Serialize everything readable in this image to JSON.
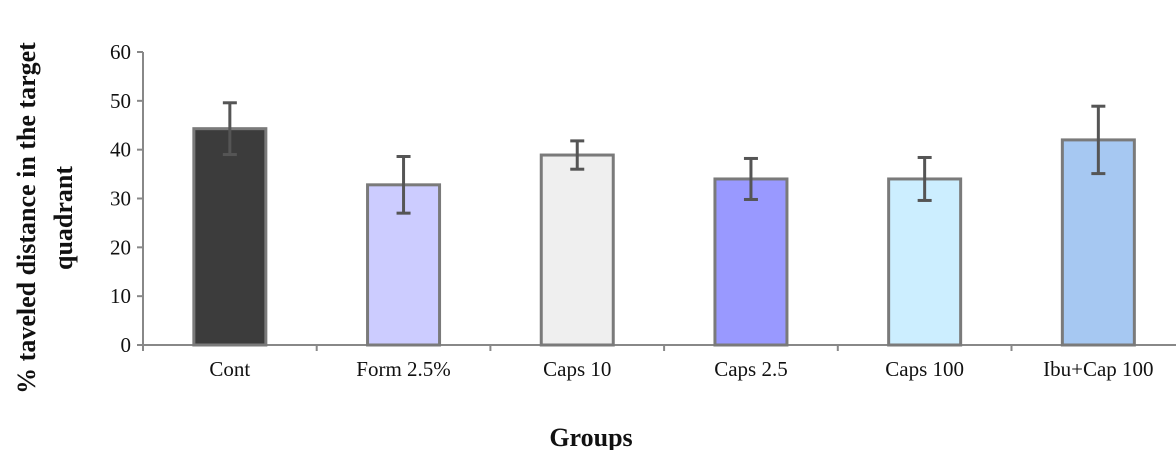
{
  "chart_data": {
    "type": "bar",
    "title": "",
    "xlabel": "Groups",
    "ylabel_lines": [
      "% taveled distance in the target",
      "quadrant"
    ],
    "ylim": [
      0,
      60
    ],
    "yticks": [
      0,
      10,
      20,
      30,
      40,
      50,
      60
    ],
    "grid": false,
    "legend": "none",
    "categories": [
      "Cont",
      "Form 2.5%",
      "Caps 10",
      "Caps 2.5",
      "Caps 100",
      "Ibu+Cap 100"
    ],
    "values": [
      44.3,
      32.8,
      38.9,
      34.0,
      34.0,
      42.0
    ],
    "error_bars": [
      5.3,
      5.8,
      2.9,
      4.2,
      4.4,
      6.9
    ],
    "colors": [
      "#3c3c3c",
      "#ccccff",
      "#efefef",
      "#9999ff",
      "#cceeff",
      "#a6c8f2"
    ],
    "bar_edge_color": "#7a7a7a",
    "error_bar_color": "#555555"
  }
}
